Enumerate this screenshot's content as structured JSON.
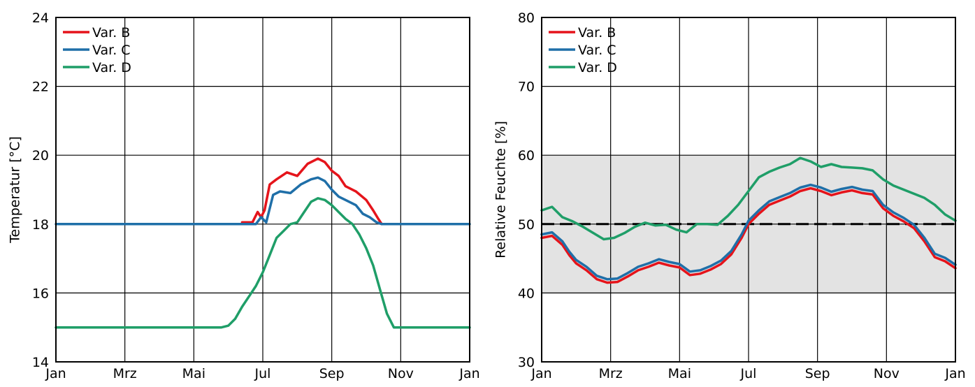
{
  "colors": {
    "var_b": "#e5141b",
    "var_c": "#1f6fa8",
    "var_d": "#1f9e68",
    "comfort_band": "#e3e3e3",
    "grid": "#000000"
  },
  "chart_data": [
    {
      "type": "line",
      "ylabel": "Temperatur [°C]",
      "xlim": [
        0,
        12
      ],
      "ylim": [
        14,
        24
      ],
      "x_ticks": [
        0,
        2,
        4,
        6,
        8,
        10,
        12
      ],
      "x_tick_labels": [
        "Jan",
        "Mrz",
        "Mai",
        "Jul",
        "Sep",
        "Nov",
        "Jan"
      ],
      "y_ticks": [
        14,
        16,
        18,
        20,
        22,
        24
      ],
      "y_tick_labels": [
        "14",
        "16",
        "18",
        "20",
        "22",
        "24"
      ],
      "legend_position": "top-left",
      "series": [
        {
          "name": "Var. B",
          "color": "#e5141b",
          "x": [
            5.4,
            5.7,
            5.85,
            5.95,
            6.05,
            6.2,
            6.4,
            6.7,
            7.0,
            7.3,
            7.6,
            7.8,
            8.0,
            8.2,
            8.4,
            8.7,
            9.0,
            9.2,
            9.35,
            9.45
          ],
          "y": [
            18.05,
            18.05,
            18.35,
            18.2,
            18.4,
            19.15,
            19.3,
            19.5,
            19.4,
            19.75,
            19.9,
            19.8,
            19.55,
            19.4,
            19.1,
            18.95,
            18.7,
            18.4,
            18.15,
            18.0
          ]
        },
        {
          "name": "Var. C",
          "color": "#1f6fa8",
          "x": [
            0,
            5.8,
            5.95,
            6.1,
            6.3,
            6.5,
            6.8,
            7.1,
            7.4,
            7.6,
            7.8,
            8.0,
            8.2,
            8.4,
            8.7,
            8.9,
            9.1,
            9.3,
            9.45,
            12
          ],
          "y": [
            18.0,
            18.0,
            18.2,
            18.05,
            18.85,
            18.95,
            18.9,
            19.15,
            19.3,
            19.35,
            19.25,
            19.0,
            18.8,
            18.7,
            18.55,
            18.3,
            18.2,
            18.05,
            18.0,
            18.0
          ]
        },
        {
          "name": "Var. D",
          "color": "#1f9e68",
          "x": [
            0,
            4.8,
            5.0,
            5.2,
            5.4,
            5.6,
            5.8,
            6.0,
            6.2,
            6.4,
            6.6,
            6.8,
            7.0,
            7.2,
            7.4,
            7.6,
            7.8,
            8.0,
            8.2,
            8.4,
            8.6,
            8.8,
            9.0,
            9.2,
            9.4,
            9.6,
            9.8,
            10.0,
            10.2,
            12
          ],
          "y": [
            15.0,
            15.0,
            15.05,
            15.25,
            15.6,
            15.9,
            16.2,
            16.6,
            17.1,
            17.6,
            17.8,
            18.0,
            18.05,
            18.35,
            18.65,
            18.75,
            18.7,
            18.55,
            18.35,
            18.15,
            18.0,
            17.7,
            17.3,
            16.8,
            16.1,
            15.4,
            15.0,
            15.0,
            15.0,
            15.0
          ]
        }
      ]
    },
    {
      "type": "line",
      "ylabel": "Relative Feuchte [%]",
      "xlim": [
        0,
        12
      ],
      "ylim": [
        30,
        80
      ],
      "x_ticks": [
        0,
        2,
        4,
        6,
        8,
        10,
        12
      ],
      "x_tick_labels": [
        "Jan",
        "Mrz",
        "Mai",
        "Jul",
        "Sep",
        "Nov",
        "Jan"
      ],
      "y_ticks": [
        30,
        40,
        50,
        60,
        70,
        80
      ],
      "y_tick_labels": [
        "30",
        "40",
        "50",
        "60",
        "70",
        "80"
      ],
      "legend_position": "top-left",
      "comfort_band": [
        40,
        60
      ],
      "reference_line": 50,
      "series": [
        {
          "name": "Var. B",
          "color": "#e5141b",
          "x": [
            0,
            0.3,
            0.6,
            0.8,
            1.0,
            1.3,
            1.6,
            1.9,
            2.2,
            2.5,
            2.8,
            3.1,
            3.4,
            3.7,
            4.0,
            4.3,
            4.6,
            4.9,
            5.2,
            5.5,
            5.8,
            6.0,
            6.3,
            6.6,
            6.9,
            7.2,
            7.5,
            7.8,
            8.1,
            8.4,
            8.7,
            9.0,
            9.3,
            9.6,
            9.9,
            10.2,
            10.5,
            10.8,
            11.1,
            11.4,
            11.7,
            12
          ],
          "y": [
            48.0,
            48.3,
            47.0,
            45.5,
            44.3,
            43.3,
            42.0,
            41.5,
            41.6,
            42.4,
            43.3,
            43.8,
            44.4,
            44.0,
            43.7,
            42.6,
            42.8,
            43.4,
            44.2,
            45.6,
            48.0,
            50.0,
            51.5,
            52.8,
            53.4,
            54.0,
            54.8,
            55.2,
            54.8,
            54.2,
            54.6,
            54.9,
            54.5,
            54.3,
            52.3,
            51.2,
            50.4,
            49.4,
            47.5,
            45.2,
            44.6,
            43.6
          ]
        },
        {
          "name": "Var. C",
          "color": "#1f6fa8",
          "x": [
            0,
            0.3,
            0.6,
            0.8,
            1.0,
            1.3,
            1.6,
            1.9,
            2.2,
            2.5,
            2.8,
            3.1,
            3.4,
            3.7,
            4.0,
            4.3,
            4.6,
            4.9,
            5.2,
            5.5,
            5.8,
            6.0,
            6.3,
            6.6,
            6.9,
            7.2,
            7.5,
            7.8,
            8.1,
            8.4,
            8.7,
            9.0,
            9.3,
            9.6,
            9.9,
            10.2,
            10.5,
            10.8,
            11.1,
            11.4,
            11.7,
            12
          ],
          "y": [
            48.5,
            48.8,
            47.5,
            46.0,
            44.8,
            43.8,
            42.5,
            42.0,
            42.1,
            42.9,
            43.8,
            44.3,
            44.9,
            44.5,
            44.2,
            43.1,
            43.3,
            43.9,
            44.7,
            46.1,
            48.5,
            50.5,
            52.0,
            53.3,
            53.9,
            54.5,
            55.3,
            55.7,
            55.3,
            54.7,
            55.1,
            55.4,
            55.0,
            54.8,
            52.8,
            51.7,
            50.9,
            49.9,
            48.0,
            45.7,
            45.1,
            44.1
          ]
        },
        {
          "name": "Var. D",
          "color": "#1f9e68",
          "x": [
            0,
            0.3,
            0.6,
            0.9,
            1.2,
            1.5,
            1.8,
            2.1,
            2.4,
            2.7,
            3.0,
            3.3,
            3.6,
            3.9,
            4.2,
            4.5,
            4.8,
            5.1,
            5.4,
            5.7,
            6.0,
            6.3,
            6.6,
            6.9,
            7.2,
            7.5,
            7.8,
            8.1,
            8.4,
            8.7,
            9.0,
            9.3,
            9.6,
            9.9,
            10.2,
            10.5,
            10.8,
            11.1,
            11.4,
            11.7,
            12
          ],
          "y": [
            52.0,
            52.5,
            51.0,
            50.4,
            49.6,
            48.7,
            47.8,
            48.0,
            48.7,
            49.6,
            50.2,
            49.8,
            49.9,
            49.2,
            48.8,
            50.0,
            50.0,
            49.9,
            51.2,
            52.8,
            54.8,
            56.8,
            57.6,
            58.2,
            58.7,
            59.6,
            59.1,
            58.3,
            58.7,
            58.3,
            58.2,
            58.1,
            57.8,
            56.5,
            55.6,
            55.0,
            54.4,
            53.8,
            52.8,
            51.4,
            50.5
          ]
        }
      ]
    }
  ]
}
